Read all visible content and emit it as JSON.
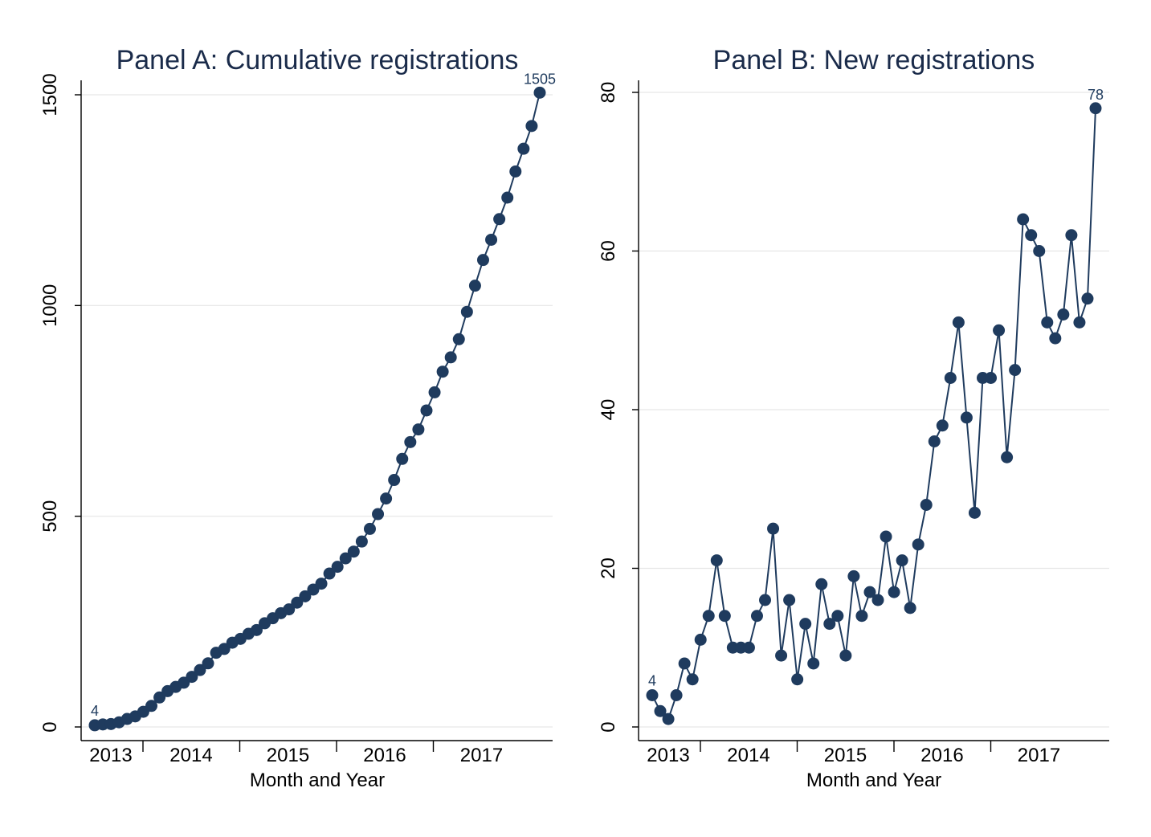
{
  "colors": {
    "series": "#1f3b5e",
    "title": "#1a2b4a",
    "grid": "#e6e6e6"
  },
  "chart_data": [
    {
      "id": "panel-a",
      "type": "line",
      "title": "Panel A: Cumulative registrations",
      "xlabel": "Month and Year",
      "ylabel": "",
      "ylim": [
        0,
        1500
      ],
      "yticks": [
        0,
        500,
        1000,
        1500
      ],
      "xticks": [
        "2013",
        "2014",
        "2015",
        "2016",
        "2017"
      ],
      "grid": true,
      "markers": true,
      "labels": {
        "first": "4",
        "last": "1505"
      },
      "series": [
        {
          "values": [
            4,
            6,
            7,
            11,
            19,
            25,
            36,
            50,
            70,
            85,
            95,
            105,
            119,
            135,
            151,
            176,
            185,
            200,
            209,
            221,
            230,
            246,
            258,
            270,
            279,
            295,
            310,
            326,
            340,
            364,
            380,
            400,
            416,
            440,
            470,
            505,
            542,
            586,
            636,
            676,
            706,
            751,
            794,
            843,
            877,
            920,
            985,
            1047,
            1108,
            1156,
            1205,
            1256,
            1318,
            1372,
            1426,
            1505
          ]
        }
      ]
    },
    {
      "id": "panel-b",
      "type": "line",
      "title": "Panel B: New registrations",
      "xlabel": "Month and Year",
      "ylabel": "",
      "ylim": [
        0,
        80
      ],
      "yticks": [
        0,
        20,
        40,
        60,
        80
      ],
      "xticks": [
        "2013",
        "2014",
        "2015",
        "2016",
        "2017"
      ],
      "grid": true,
      "markers": true,
      "labels": {
        "first": "4",
        "last": "78"
      },
      "series": [
        {
          "values": [
            4,
            2,
            1,
            4,
            8,
            6,
            11,
            14,
            21,
            14,
            10,
            10,
            10,
            14,
            16,
            25,
            9,
            16,
            6,
            13,
            8,
            18,
            13,
            14,
            9,
            19,
            14,
            17,
            16,
            24,
            17,
            21,
            15,
            23,
            28,
            36,
            38,
            44,
            51,
            39,
            27,
            44,
            44,
            50,
            34,
            45,
            64,
            62,
            60,
            51,
            49,
            52,
            62,
            51,
            54,
            78
          ]
        }
      ]
    }
  ]
}
